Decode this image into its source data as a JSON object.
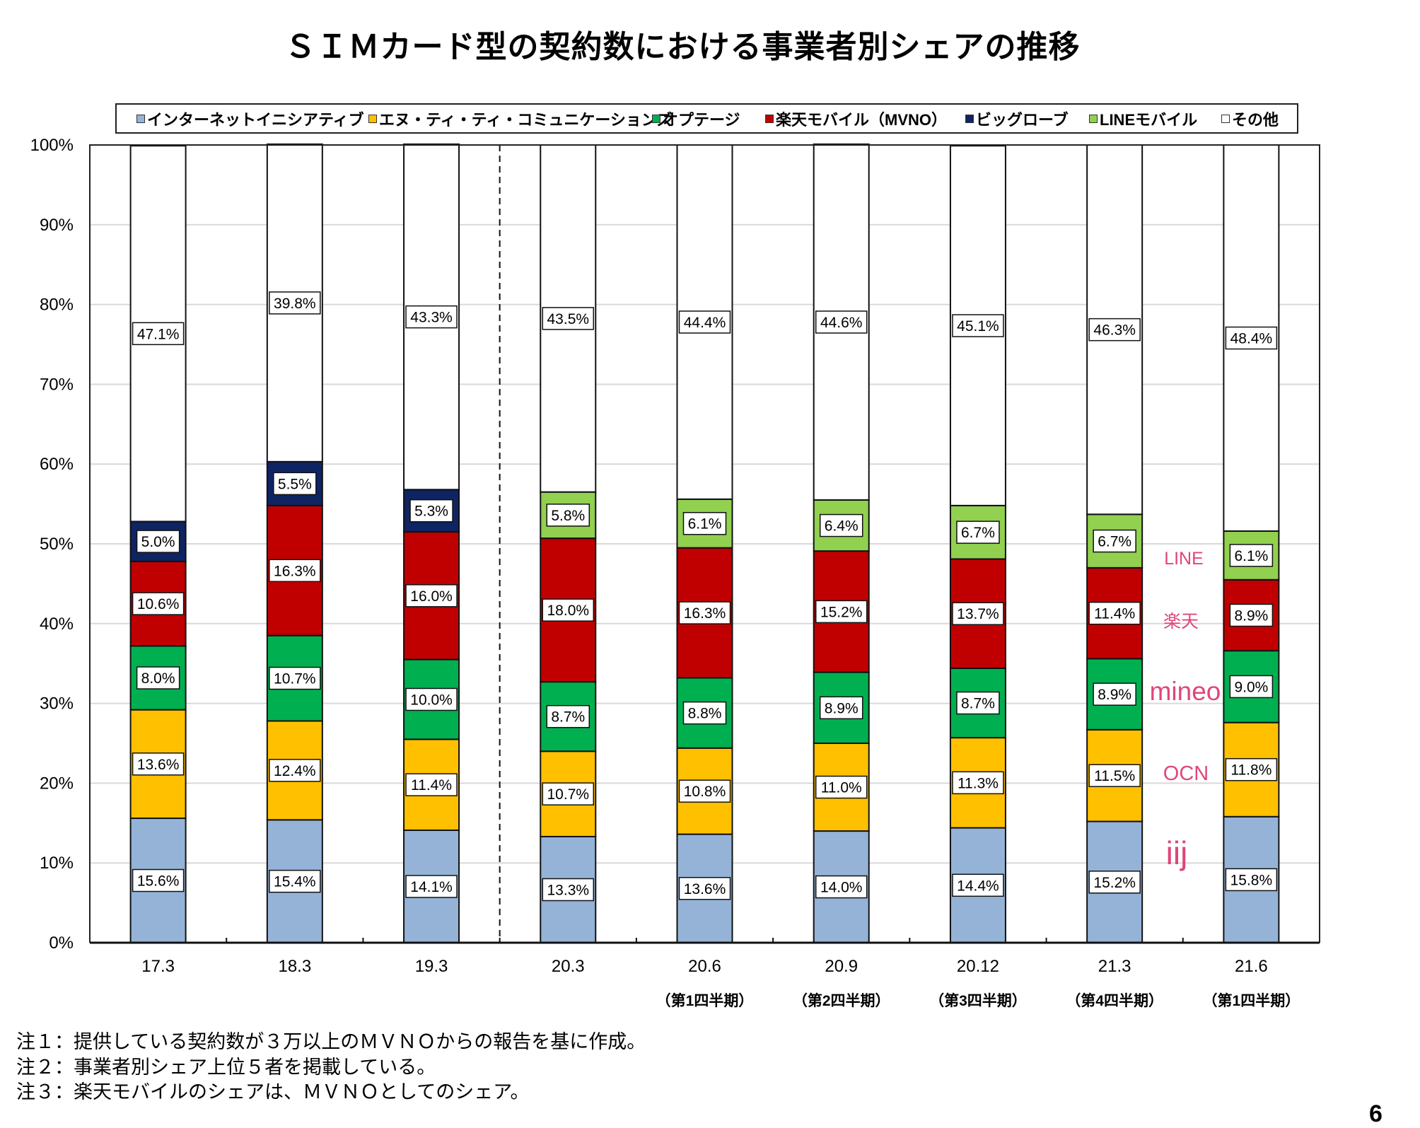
{
  "page": {
    "title": "ＳＩＭカード型の契約数における事業者別シェアの推移",
    "page_number": "6"
  },
  "notes": [
    "注１：提供している契約数が３万以上のＭＶＮＯからの報告を基に作成。",
    "注２：事業者別シェア上位５者を掲載している。",
    "注３：楽天モバイルのシェアは、ＭＶＮＯとしてのシェア。"
  ],
  "annotation_color": "#e0457b",
  "annotations": [
    {
      "text": "LINE"
    },
    {
      "text": "楽天"
    },
    {
      "text": "mineo"
    },
    {
      "text": "OCN"
    },
    {
      "text": "iij"
    }
  ],
  "chart_data": {
    "type": "bar",
    "stacked": true,
    "title": "ＳＩＭカード型の契約数における事業者別シェアの推移",
    "xlabel": "",
    "ylabel": "",
    "ylim": [
      0,
      100
    ],
    "yticks": [
      "0%",
      "10%",
      "20%",
      "30%",
      "40%",
      "50%",
      "60%",
      "70%",
      "80%",
      "90%",
      "100%"
    ],
    "grid": true,
    "legend_position": "top",
    "divider_between": [
      "19.3",
      "20.3"
    ],
    "categories": [
      "17.3",
      "18.3",
      "19.3",
      "20.3",
      "20.6",
      "20.9",
      "20.12",
      "21.3",
      "21.6"
    ],
    "category_sublabels": [
      "",
      "",
      "",
      "",
      "（第1四半期）",
      "（第2四半期）",
      "（第3四半期）",
      "（第4四半期）",
      "（第1四半期）"
    ],
    "series": [
      {
        "name": "インターネットイニシアティブ",
        "color": "#95b3d7",
        "values": [
          15.6,
          15.4,
          14.1,
          13.3,
          13.6,
          14.0,
          14.4,
          15.2,
          15.8
        ],
        "labels": [
          "15.6%",
          "15.4%",
          "14.1%",
          "13.3%",
          "13.6%",
          "14.0%",
          "14.4%",
          "15.2%",
          "15.8%"
        ]
      },
      {
        "name": "エヌ・ティ・ティ・コミュニケーションズ",
        "color": "#ffc000",
        "values": [
          13.6,
          12.4,
          11.4,
          10.7,
          10.8,
          11.0,
          11.3,
          11.5,
          11.8
        ],
        "labels": [
          "13.6%",
          "12.4%",
          "11.4%",
          "10.7%",
          "10.8%",
          "11.0%",
          "11.3%",
          "11.5%",
          "11.8%"
        ]
      },
      {
        "name": "オプテージ",
        "color": "#00b050",
        "values": [
          8.0,
          10.7,
          10.0,
          8.7,
          8.8,
          8.9,
          8.7,
          8.9,
          9.0
        ],
        "labels": [
          "8.0%",
          "10.7%",
          "10.0%",
          "8.7%",
          "8.8%",
          "8.9%",
          "8.7%",
          "8.9%",
          "9.0%"
        ]
      },
      {
        "name": "楽天モバイル（MVNO）",
        "color": "#c00000",
        "values": [
          10.6,
          16.3,
          16.0,
          18.0,
          16.3,
          15.2,
          13.7,
          11.4,
          8.9
        ],
        "labels": [
          "10.6%",
          "16.3%",
          "16.0%",
          "18.0%",
          "16.3%",
          "15.2%",
          "13.7%",
          "11.4%",
          "8.9%"
        ]
      },
      {
        "name": "ビッグローブ",
        "color": "#0e2463",
        "values": [
          5.0,
          5.5,
          5.3,
          null,
          null,
          null,
          null,
          null,
          null
        ],
        "labels": [
          "5.0%",
          "5.5%",
          "5.3%",
          null,
          null,
          null,
          null,
          null,
          null
        ]
      },
      {
        "name": "LINEモバイル",
        "color": "#92d050",
        "values": [
          null,
          null,
          null,
          5.8,
          6.1,
          6.4,
          6.7,
          6.7,
          6.1
        ],
        "labels": [
          null,
          null,
          null,
          "5.8%",
          "6.1%",
          "6.4%",
          "6.7%",
          "6.7%",
          "6.1%"
        ]
      },
      {
        "name": "その他",
        "color": "#ffffff",
        "values": [
          47.1,
          39.8,
          43.3,
          43.5,
          44.4,
          44.6,
          45.1,
          46.3,
          48.4
        ],
        "labels": [
          "47.1%",
          "39.8%",
          "43.3%",
          "43.5%",
          "44.4%",
          "44.6%",
          "45.1%",
          "46.3%",
          "48.4%"
        ]
      }
    ]
  }
}
